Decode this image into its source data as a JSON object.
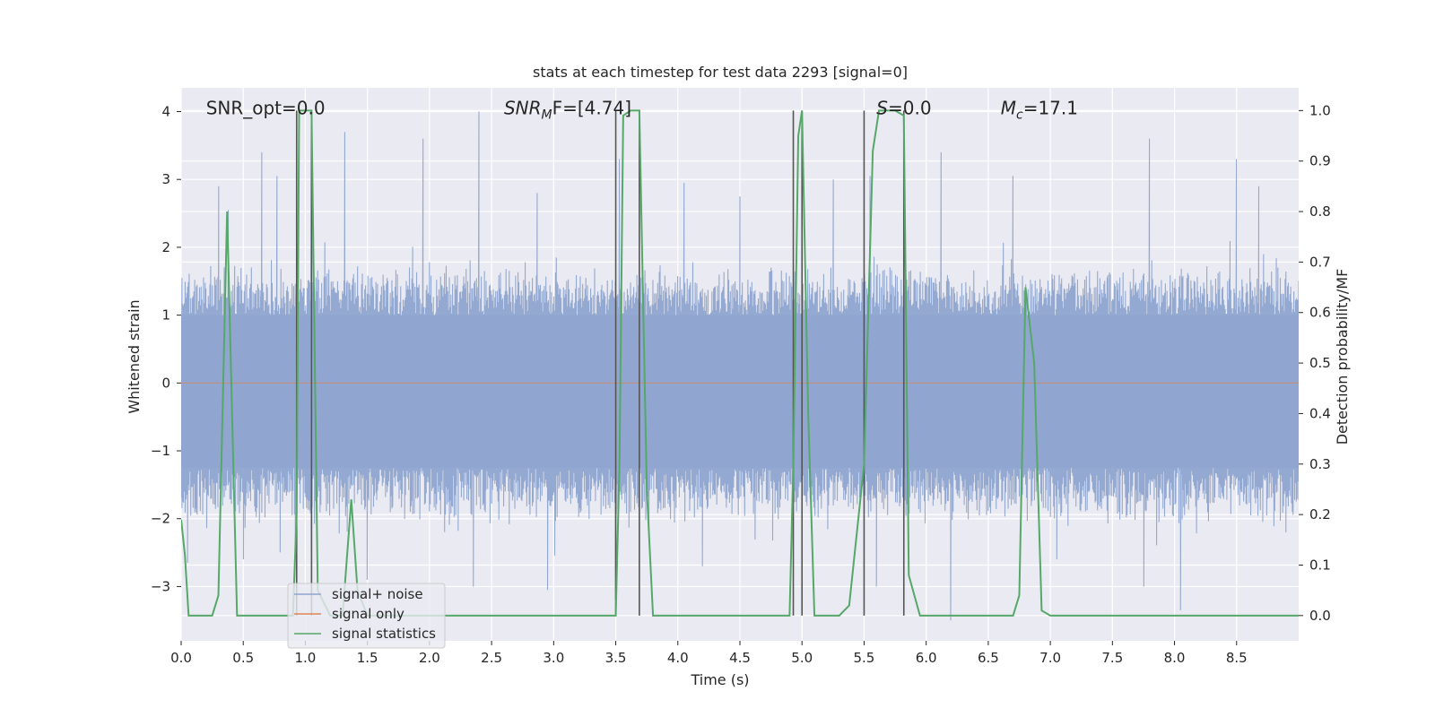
{
  "chart_data": {
    "type": "line",
    "title": "stats at each timestep for test data 2293 [signal=0]",
    "xlabel": "Time (s)",
    "ylabel": "Whitened strain",
    "y2label": "Detection probability/MF",
    "xlim": [
      0.0,
      9.0
    ],
    "ylim": [
      -3.8,
      4.35
    ],
    "y2lim": [
      -0.05,
      1.045
    ],
    "xticks": [
      "0.0",
      "0.5",
      "1.0",
      "1.5",
      "2.0",
      "2.5",
      "3.0",
      "3.5",
      "4.0",
      "4.5",
      "5.0",
      "5.5",
      "6.0",
      "6.5",
      "7.0",
      "7.5",
      "8.0",
      "8.5"
    ],
    "yticks": [
      "−3",
      "−2",
      "−1",
      "0",
      "1",
      "2",
      "3",
      "4"
    ],
    "y2ticks": [
      "0.0",
      "0.1",
      "0.2",
      "0.3",
      "0.4",
      "0.5",
      "0.6",
      "0.7",
      "0.8",
      "0.9",
      "1.0"
    ],
    "grid": true,
    "legend_position": "lower-left",
    "colors": {
      "background": "#eaeaf2",
      "grid": "#ffffff",
      "noise": "#8fa5cf",
      "signal_only": "#dd8452",
      "statistics": "#55a868",
      "vlines": "#555555"
    },
    "annotations": [
      {
        "id": "snr-opt",
        "text": "SNR_opt=0.0",
        "x": 0.2,
        "y": 4.05
      },
      {
        "id": "snr-mf",
        "html": true,
        "main": "SNR",
        "sub": "M",
        "rest": "F=[4.74]",
        "x": 2.6,
        "y": 4.05
      },
      {
        "id": "s",
        "html": true,
        "main": "S",
        "sub": "",
        "rest": "=0.0",
        "x": 5.6,
        "y": 4.05
      },
      {
        "id": "mc",
        "html": true,
        "main": "M",
        "sub": "c",
        "rest": "=17.1",
        "x": 6.6,
        "y": 4.05
      }
    ],
    "vlines": [
      0.93,
      1.05,
      3.5,
      3.69,
      4.93,
      5.0,
      5.5,
      5.82
    ],
    "series": [
      {
        "name": "signal+ noise",
        "kind": "noise",
        "band": [
          -1.25,
          1.0
        ],
        "envelope_typical": [
          -2.1,
          1.75
        ],
        "peaks": [
          {
            "x": 0.3,
            "y": 2.9
          },
          {
            "x": 0.38,
            "y": 2.55
          },
          {
            "x": 0.65,
            "y": 3.4
          },
          {
            "x": 0.77,
            "y": 3.05
          },
          {
            "x": 1.05,
            "y": 3.55
          },
          {
            "x": 1.32,
            "y": 3.7
          },
          {
            "x": 1.95,
            "y": 3.6
          },
          {
            "x": 2.4,
            "y": 4.0
          },
          {
            "x": 2.87,
            "y": 2.8
          },
          {
            "x": 3.53,
            "y": 3.3
          },
          {
            "x": 4.05,
            "y": 2.95
          },
          {
            "x": 4.5,
            "y": 2.75
          },
          {
            "x": 5.25,
            "y": 3.0
          },
          {
            "x": 5.55,
            "y": 3.05
          },
          {
            "x": 6.12,
            "y": 3.4
          },
          {
            "x": 6.7,
            "y": 3.05
          },
          {
            "x": 7.8,
            "y": 3.6
          },
          {
            "x": 8.5,
            "y": 3.3
          },
          {
            "x": 8.68,
            "y": 2.9
          }
        ],
        "troughs": [
          {
            "x": 0.05,
            "y": -2.65
          },
          {
            "x": 0.5,
            "y": -2.6
          },
          {
            "x": 0.92,
            "y": -2.5
          },
          {
            "x": 1.5,
            "y": -2.9
          },
          {
            "x": 2.35,
            "y": -3.0
          },
          {
            "x": 2.95,
            "y": -3.05
          },
          {
            "x": 3.5,
            "y": -3.2
          },
          {
            "x": 4.2,
            "y": -2.7
          },
          {
            "x": 5.6,
            "y": -3.0
          },
          {
            "x": 6.2,
            "y": -3.5
          },
          {
            "x": 7.05,
            "y": -2.6
          },
          {
            "x": 7.75,
            "y": -3.0
          },
          {
            "x": 8.05,
            "y": -3.35
          },
          {
            "x": 8.9,
            "y": -2.2
          }
        ]
      },
      {
        "name": "signal only",
        "kind": "flat",
        "y": 0.0
      },
      {
        "name": "signal statistics",
        "kind": "line",
        "axis": "right",
        "x": [
          0.0,
          0.03,
          0.06,
          0.1,
          0.25,
          0.3,
          0.37,
          0.45,
          0.6,
          0.9,
          0.93,
          0.95,
          1.0,
          1.05,
          1.1,
          1.2,
          1.3,
          1.37,
          1.42,
          1.5,
          2.0,
          3.3,
          3.5,
          3.53,
          3.56,
          3.62,
          3.69,
          3.75,
          3.8,
          4.0,
          4.9,
          4.93,
          4.97,
          5.0,
          5.05,
          5.1,
          5.3,
          5.38,
          5.5,
          5.57,
          5.62,
          5.75,
          5.82,
          5.86,
          5.95,
          6.5,
          6.7,
          6.75,
          6.8,
          6.87,
          6.93,
          7.0,
          9.0
        ],
        "y": [
          0.19,
          0.12,
          0.0,
          0.0,
          0.0,
          0.04,
          0.8,
          0.0,
          0.0,
          0.0,
          0.2,
          1.0,
          1.0,
          1.0,
          0.05,
          0.0,
          0.0,
          0.23,
          0.05,
          0.0,
          0.0,
          0.0,
          0.0,
          0.3,
          0.99,
          1.0,
          1.0,
          0.25,
          0.0,
          0.0,
          0.0,
          0.3,
          0.95,
          1.0,
          0.4,
          0.0,
          0.0,
          0.02,
          0.3,
          0.92,
          1.0,
          1.0,
          0.99,
          0.08,
          0.0,
          0.0,
          0.0,
          0.04,
          0.65,
          0.5,
          0.01,
          0.0,
          0.0
        ]
      }
    ]
  },
  "legend": {
    "items": [
      "signal+ noise",
      "signal only",
      "signal statistics"
    ]
  }
}
